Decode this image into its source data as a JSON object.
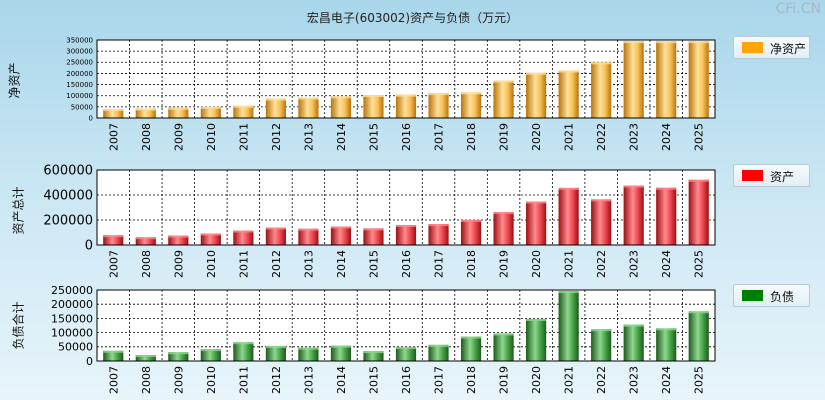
{
  "title": "宏昌电子(603002)资产与负债（万元）",
  "watermark": "CFi.CN",
  "chart_data": [
    {
      "type": "bar",
      "ylabel": "净资产",
      "legend": "净资产",
      "color": "#f5a623",
      "ylim": [
        0,
        350000
      ],
      "yticks": [
        0,
        50000,
        100000,
        150000,
        200000,
        250000,
        300000,
        350000
      ],
      "categories": [
        "2007",
        "2008",
        "2009",
        "2010",
        "2011",
        "2012",
        "2013",
        "2014",
        "2015",
        "2016",
        "2017",
        "2018",
        "2019",
        "2020",
        "2021",
        "2022",
        "2023",
        "2024",
        "2025"
      ],
      "values": [
        40000,
        42000,
        46000,
        50000,
        55000,
        87000,
        92000,
        97000,
        103000,
        105000,
        112000,
        115000,
        168000,
        203000,
        213000,
        250000,
        345000,
        345000,
        345000
      ]
    },
    {
      "type": "bar",
      "ylabel": "资产总计",
      "legend": "资产",
      "color": "#e81c24",
      "ylim": [
        0,
        600000
      ],
      "yticks": [
        0,
        200000,
        400000,
        600000
      ],
      "categories": [
        "2007",
        "2008",
        "2009",
        "2010",
        "2011",
        "2012",
        "2013",
        "2014",
        "2015",
        "2016",
        "2017",
        "2018",
        "2019",
        "2020",
        "2021",
        "2022",
        "2023",
        "2024",
        "2025"
      ],
      "values": [
        78000,
        62000,
        75000,
        92000,
        116000,
        140000,
        130000,
        148000,
        133000,
        160000,
        167000,
        200000,
        263000,
        348000,
        457000,
        365000,
        476000,
        458000,
        522000
      ]
    },
    {
      "type": "bar",
      "ylabel": "负债合计",
      "legend": "负债",
      "color": "#2e8b2e",
      "ylim": [
        0,
        250000
      ],
      "yticks": [
        0,
        50000,
        100000,
        150000,
        200000,
        250000
      ],
      "categories": [
        "2007",
        "2008",
        "2009",
        "2010",
        "2011",
        "2012",
        "2013",
        "2014",
        "2015",
        "2016",
        "2017",
        "2018",
        "2019",
        "2020",
        "2021",
        "2022",
        "2023",
        "2024",
        "2025"
      ],
      "values": [
        36000,
        21000,
        31000,
        42000,
        66000,
        53000,
        47000,
        54000,
        35000,
        49000,
        57000,
        86000,
        97000,
        148000,
        246000,
        112000,
        128000,
        115000,
        175000
      ]
    }
  ]
}
